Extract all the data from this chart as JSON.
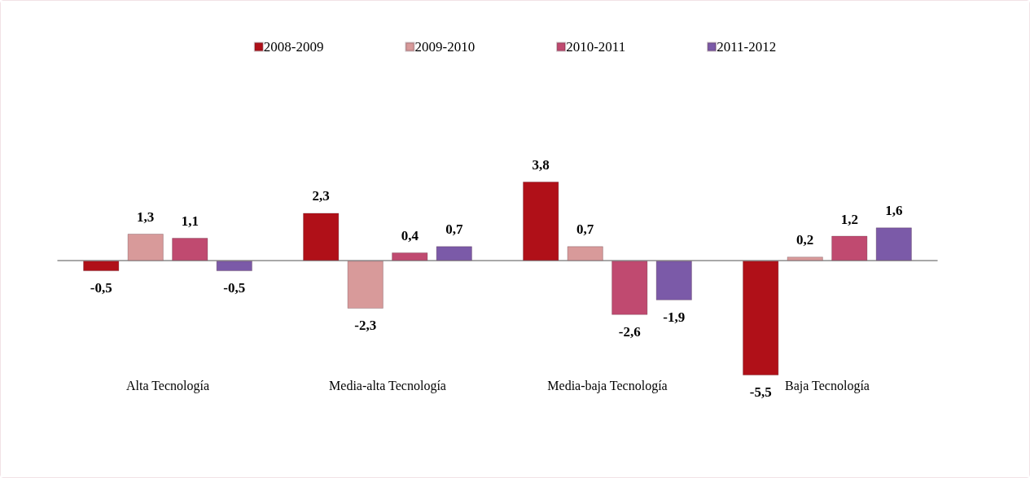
{
  "chart_data": {
    "type": "bar",
    "categories": [
      "Alta Tecnología",
      "Media-alta Tecnología",
      "Media-baja Tecnología",
      "Baja Tecnología"
    ],
    "series": [
      {
        "name": "2008-2009",
        "color": "#b01018",
        "values": [
          -0.5,
          2.3,
          3.8,
          -5.5
        ],
        "value_labels": [
          "-0,5",
          "2,3",
          "3,8",
          "-5,5"
        ]
      },
      {
        "name": "2009-2010",
        "color": "#d89a9a",
        "values": [
          1.3,
          -2.3,
          0.7,
          0.2
        ],
        "value_labels": [
          "1,3",
          "-2,3",
          "0,7",
          "0,2"
        ]
      },
      {
        "name": "2010-2011",
        "color": "#c04a70",
        "values": [
          1.1,
          0.4,
          -2.6,
          1.2
        ],
        "value_labels": [
          "1,1",
          "0,4",
          "-2,6",
          "1,2"
        ]
      },
      {
        "name": "2011-2012",
        "color": "#7b5aa8",
        "values": [
          -0.5,
          0.7,
          -1.9,
          1.6
        ],
        "value_labels": [
          "-0,5",
          "0,7",
          "-1,9",
          "1,6"
        ]
      }
    ],
    "legend": "top"
  }
}
